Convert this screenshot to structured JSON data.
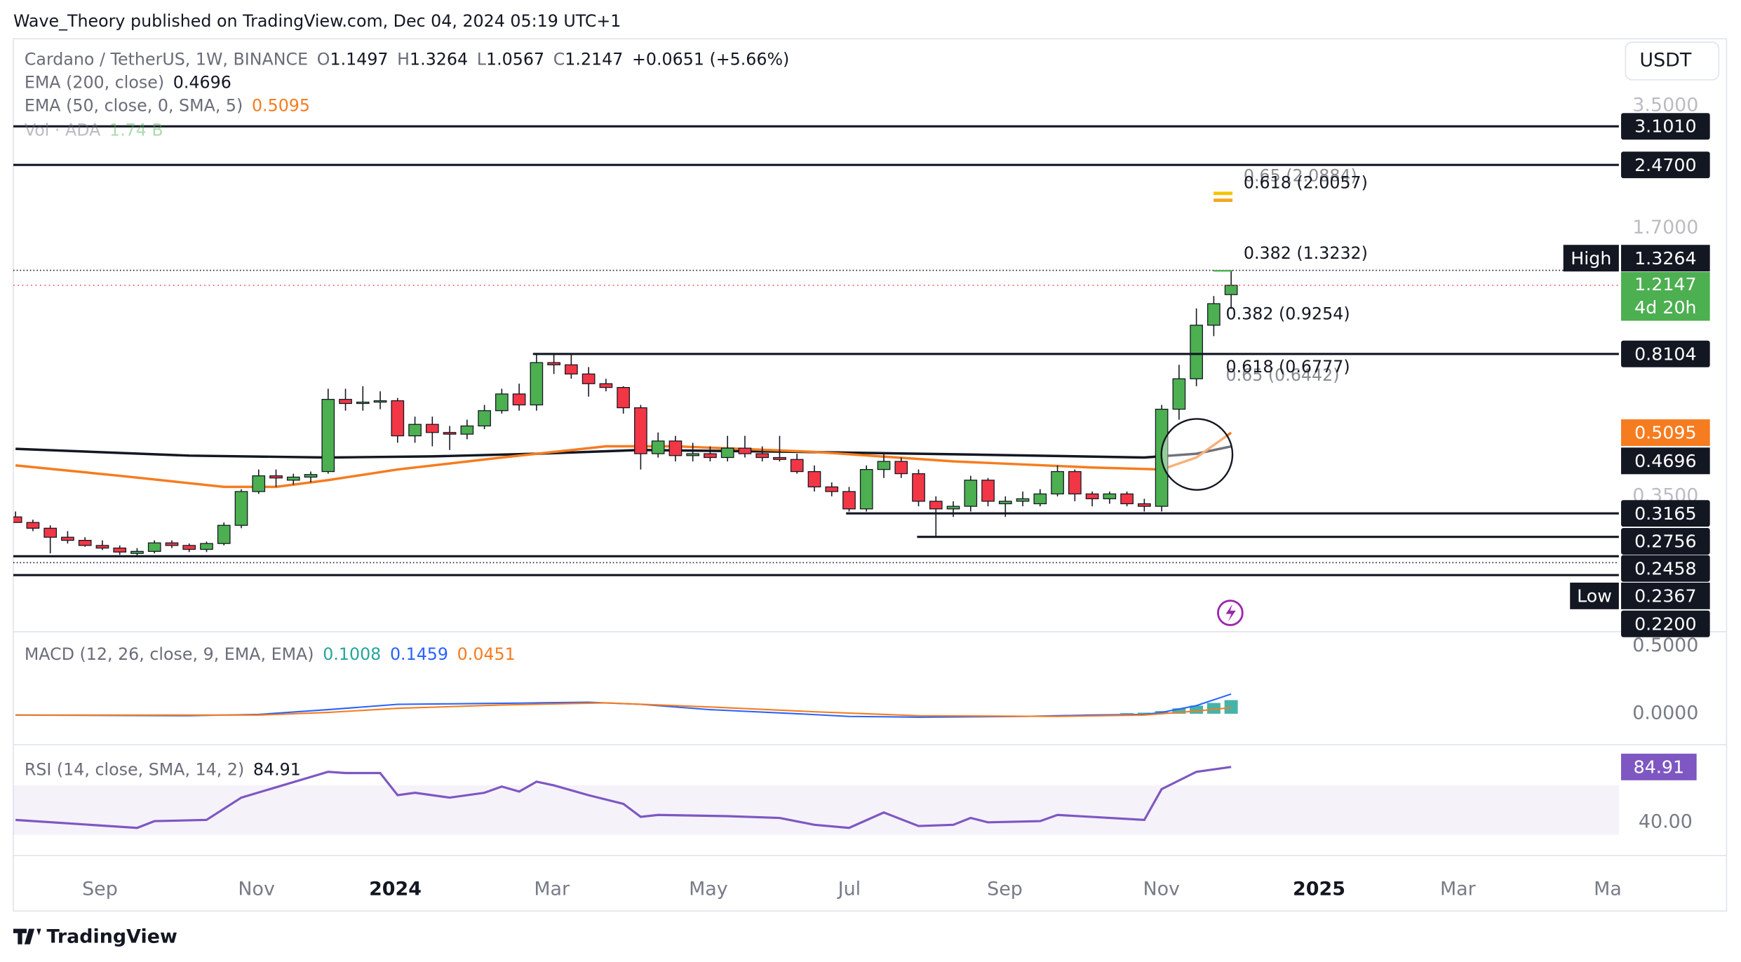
{
  "header": "Wave_Theory published on TradingView.com, Dec 04, 2024 05:19 UTC+1",
  "footer": "TradingView",
  "currency": "USDT",
  "chart_data": {
    "type": "candlestick",
    "title": "Cardano / TetherUS, 1W, BINANCE",
    "ohlc": [
      {
        "label": "O",
        "value": 1.1497
      },
      {
        "label": "H",
        "value": 1.3264
      },
      {
        "label": "L",
        "value": 1.0567
      },
      {
        "label": "C",
        "value": 1.2147
      }
    ],
    "change": "+0.0651 (+5.66%)",
    "log_scale": true,
    "ylim": [
      0.1596,
      5.196
    ],
    "yticks": [
      {
        "value": 3.5,
        "label": "3.5000"
      },
      {
        "value": 1.7,
        "label": "1.7000"
      },
      {
        "value": 0.35,
        "label": "0.3500"
      }
    ],
    "up_color": "#4caf50",
    "down_color": "#f23645",
    "candles": [
      [
        0.31,
        0.32,
        0.3,
        0.3
      ],
      [
        0.3,
        0.305,
        0.285,
        0.29
      ],
      [
        0.29,
        0.295,
        0.25,
        0.275
      ],
      [
        0.275,
        0.285,
        0.265,
        0.27
      ],
      [
        0.27,
        0.275,
        0.26,
        0.262
      ],
      [
        0.262,
        0.27,
        0.255,
        0.258
      ],
      [
        0.258,
        0.262,
        0.248,
        0.252
      ],
      [
        0.25,
        0.258,
        0.245,
        0.253
      ],
      [
        0.253,
        0.27,
        0.25,
        0.266
      ],
      [
        0.266,
        0.27,
        0.258,
        0.262
      ],
      [
        0.262,
        0.265,
        0.252,
        0.256
      ],
      [
        0.256,
        0.268,
        0.252,
        0.265
      ],
      [
        0.265,
        0.3,
        0.262,
        0.295
      ],
      [
        0.295,
        0.365,
        0.29,
        0.36
      ],
      [
        0.36,
        0.41,
        0.355,
        0.395
      ],
      [
        0.395,
        0.41,
        0.37,
        0.39
      ],
      [
        0.385,
        0.4,
        0.375,
        0.392
      ],
      [
        0.392,
        0.405,
        0.38,
        0.398
      ],
      [
        0.405,
        0.66,
        0.4,
        0.62
      ],
      [
        0.62,
        0.66,
        0.58,
        0.605
      ],
      [
        0.605,
        0.67,
        0.58,
        0.61
      ],
      [
        0.61,
        0.65,
        0.585,
        0.615
      ],
      [
        0.615,
        0.625,
        0.48,
        0.5
      ],
      [
        0.5,
        0.56,
        0.48,
        0.535
      ],
      [
        0.535,
        0.56,
        0.47,
        0.51
      ],
      [
        0.51,
        0.53,
        0.46,
        0.505
      ],
      [
        0.505,
        0.55,
        0.49,
        0.53
      ],
      [
        0.53,
        0.6,
        0.52,
        0.58
      ],
      [
        0.58,
        0.66,
        0.57,
        0.64
      ],
      [
        0.64,
        0.68,
        0.58,
        0.6
      ],
      [
        0.6,
        0.81,
        0.58,
        0.77
      ],
      [
        0.77,
        0.81,
        0.72,
        0.76
      ],
      [
        0.76,
        0.81,
        0.7,
        0.72
      ],
      [
        0.72,
        0.75,
        0.63,
        0.68
      ],
      [
        0.68,
        0.7,
        0.65,
        0.665
      ],
      [
        0.665,
        0.67,
        0.57,
        0.59
      ],
      [
        0.59,
        0.6,
        0.41,
        0.45
      ],
      [
        0.45,
        0.51,
        0.44,
        0.485
      ],
      [
        0.485,
        0.5,
        0.43,
        0.445
      ],
      [
        0.445,
        0.48,
        0.43,
        0.45
      ],
      [
        0.45,
        0.47,
        0.43,
        0.44
      ],
      [
        0.44,
        0.5,
        0.43,
        0.465
      ],
      [
        0.465,
        0.5,
        0.44,
        0.45
      ],
      [
        0.45,
        0.47,
        0.43,
        0.44
      ],
      [
        0.44,
        0.5,
        0.43,
        0.435
      ],
      [
        0.435,
        0.45,
        0.4,
        0.405
      ],
      [
        0.405,
        0.42,
        0.36,
        0.37
      ],
      [
        0.37,
        0.38,
        0.35,
        0.36
      ],
      [
        0.36,
        0.37,
        0.32,
        0.325
      ],
      [
        0.325,
        0.42,
        0.32,
        0.41
      ],
      [
        0.41,
        0.45,
        0.39,
        0.43
      ],
      [
        0.43,
        0.44,
        0.39,
        0.4
      ],
      [
        0.4,
        0.41,
        0.33,
        0.34
      ],
      [
        0.34,
        0.35,
        0.275,
        0.325
      ],
      [
        0.325,
        0.34,
        0.31,
        0.33
      ],
      [
        0.33,
        0.395,
        0.32,
        0.385
      ],
      [
        0.385,
        0.39,
        0.33,
        0.34
      ],
      [
        0.335,
        0.35,
        0.31,
        0.34
      ],
      [
        0.34,
        0.36,
        0.33,
        0.345
      ],
      [
        0.335,
        0.365,
        0.33,
        0.355
      ],
      [
        0.355,
        0.42,
        0.35,
        0.405
      ],
      [
        0.405,
        0.41,
        0.34,
        0.355
      ],
      [
        0.355,
        0.36,
        0.33,
        0.345
      ],
      [
        0.345,
        0.36,
        0.335,
        0.355
      ],
      [
        0.355,
        0.36,
        0.33,
        0.335
      ],
      [
        0.335,
        0.345,
        0.32,
        0.33
      ],
      [
        0.33,
        0.6,
        0.32,
        0.585
      ],
      [
        0.585,
        0.76,
        0.55,
        0.7
      ],
      [
        0.7,
        1.06,
        0.67,
        0.96
      ],
      [
        0.96,
        1.14,
        0.9,
        1.09
      ]
    ],
    "levels": [
      {
        "value": 3.101,
        "label": "3.1010"
      },
      {
        "value": 2.47,
        "label": "2.4700"
      },
      {
        "value": 0.8104
      },
      {
        "value": 0.3165
      },
      {
        "value": 0.2756
      },
      {
        "value": 0.2458
      },
      {
        "value": 0.22,
        "label": "0.2200"
      }
    ],
    "high": {
      "label": "High",
      "value": 1.3264
    },
    "low": {
      "label": "Low",
      "value": 0.2367
    },
    "last": {
      "value": 1.2147,
      "countdown": "4d 20h"
    },
    "fibs": [
      {
        "label": "0.65 (2.0884)",
        "value": 2.0884,
        "color": "#f5c400"
      },
      {
        "label": "0.618 (2.0057)",
        "value": 2.0057,
        "color": "#f5a623"
      },
      {
        "label": "0.382 (1.3232)",
        "value": 1.3232,
        "color": "#4caf50"
      },
      {
        "label": "0.382 (0.9254)",
        "value": 0.9254,
        "color": "#4caf50"
      },
      {
        "label": "0.618 (0.6777)",
        "value": 0.6777,
        "color": "#f5a623"
      },
      {
        "label": "0.65 (0.6442)",
        "value": 0.6442,
        "color": "#f5c400"
      }
    ],
    "emas": [
      {
        "name": "EMA (200, close)",
        "value": 0.4696,
        "color": "#131722",
        "x": [
          0,
          10,
          18,
          24,
          30,
          36,
          45,
          55,
          65,
          68,
          70
        ],
        "values": [
          0.463,
          0.445,
          0.44,
          0.443,
          0.45,
          0.46,
          0.455,
          0.448,
          0.44,
          0.45,
          0.4696
        ]
      },
      {
        "name": "EMA (50, close, 0, SMA, 5)",
        "value": 0.5095,
        "color": "#f57c1f",
        "x": [
          0,
          6,
          12,
          15,
          18,
          22,
          28,
          34,
          38,
          46,
          54,
          62,
          66,
          68,
          70
        ],
        "values": [
          0.42,
          0.395,
          0.37,
          0.37,
          0.385,
          0.41,
          0.44,
          0.47,
          0.47,
          0.455,
          0.43,
          0.415,
          0.41,
          0.44,
          0.5095
        ]
      }
    ],
    "volume": {
      "name": "Vol · ADA",
      "value": "1.74 B"
    },
    "macd": {
      "name": "MACD (12, 26, close, 9, EMA, EMA)",
      "legend": [
        {
          "value": 0.1008,
          "color": "#26a69a"
        },
        {
          "value": 0.1459,
          "color": "#2962ff"
        },
        {
          "value": 0.0451,
          "color": "#f57c1f"
        }
      ],
      "ylim": [
        -0.213,
        0.59
      ],
      "yticks": [
        {
          "value": 0.5,
          "label": "0.5000"
        },
        {
          "value": 0,
          "label": "0.0000"
        }
      ],
      "macd_line": {
        "color": "#2962ff",
        "x": [
          0,
          10,
          14,
          18,
          22,
          26,
          30,
          33,
          36,
          40,
          45,
          48,
          52,
          58,
          62,
          65,
          66,
          68,
          70
        ],
        "values": [
          -0.01,
          -0.015,
          -0.005,
          0.03,
          0.07,
          0.075,
          0.08,
          0.085,
          0.07,
          0.03,
          0.0,
          -0.02,
          -0.025,
          -0.02,
          -0.01,
          -0.005,
          0.01,
          0.06,
          0.1459
        ]
      },
      "signal_line": {
        "color": "#f57c1f",
        "x": [
          0,
          14,
          18,
          22,
          28,
          34,
          40,
          46,
          52,
          60,
          65,
          68,
          70
        ],
        "values": [
          -0.01,
          -0.01,
          0.01,
          0.04,
          0.065,
          0.08,
          0.05,
          0.015,
          -0.015,
          -0.02,
          -0.01,
          0.02,
          0.0451
        ]
      },
      "histogram": {
        "color": "#26a69a",
        "x": [
          64,
          65,
          66,
          67,
          68,
          69,
          70
        ],
        "values": [
          0.005,
          0.008,
          0.02,
          0.04,
          0.06,
          0.08,
          0.1008
        ]
      }
    },
    "rsi": {
      "name": "RSI (14, close, SMA, 14, 2)",
      "value": 84.91,
      "color": "#7e57c2",
      "ylim": [
        13.05,
        101.1
      ],
      "yticks": [
        {
          "value": 40,
          "label": "40.00"
        }
      ],
      "band": [
        30,
        70
      ],
      "x": [
        0,
        7,
        8,
        11,
        13,
        18,
        19,
        21,
        22,
        23,
        25,
        27,
        28,
        29,
        30,
        31,
        33,
        35,
        36,
        37,
        41,
        44,
        46,
        48,
        50,
        52,
        54,
        55,
        56,
        59,
        60,
        65,
        66,
        68,
        70
      ],
      "values": [
        42,
        35.5,
        41,
        42,
        60,
        81,
        80,
        80,
        62,
        64,
        60,
        64,
        69,
        65,
        73,
        70,
        62,
        55,
        44.5,
        46,
        45,
        43.6,
        38,
        35.5,
        48,
        37,
        38,
        43.6,
        40,
        41,
        46,
        42,
        67,
        81,
        84.91
      ]
    },
    "x_labels": [
      "Sep",
      "Nov",
      "2024",
      "Mar",
      "May",
      "Jul",
      "Sep",
      "Nov",
      "2025",
      "Mar",
      "Ma"
    ]
  }
}
